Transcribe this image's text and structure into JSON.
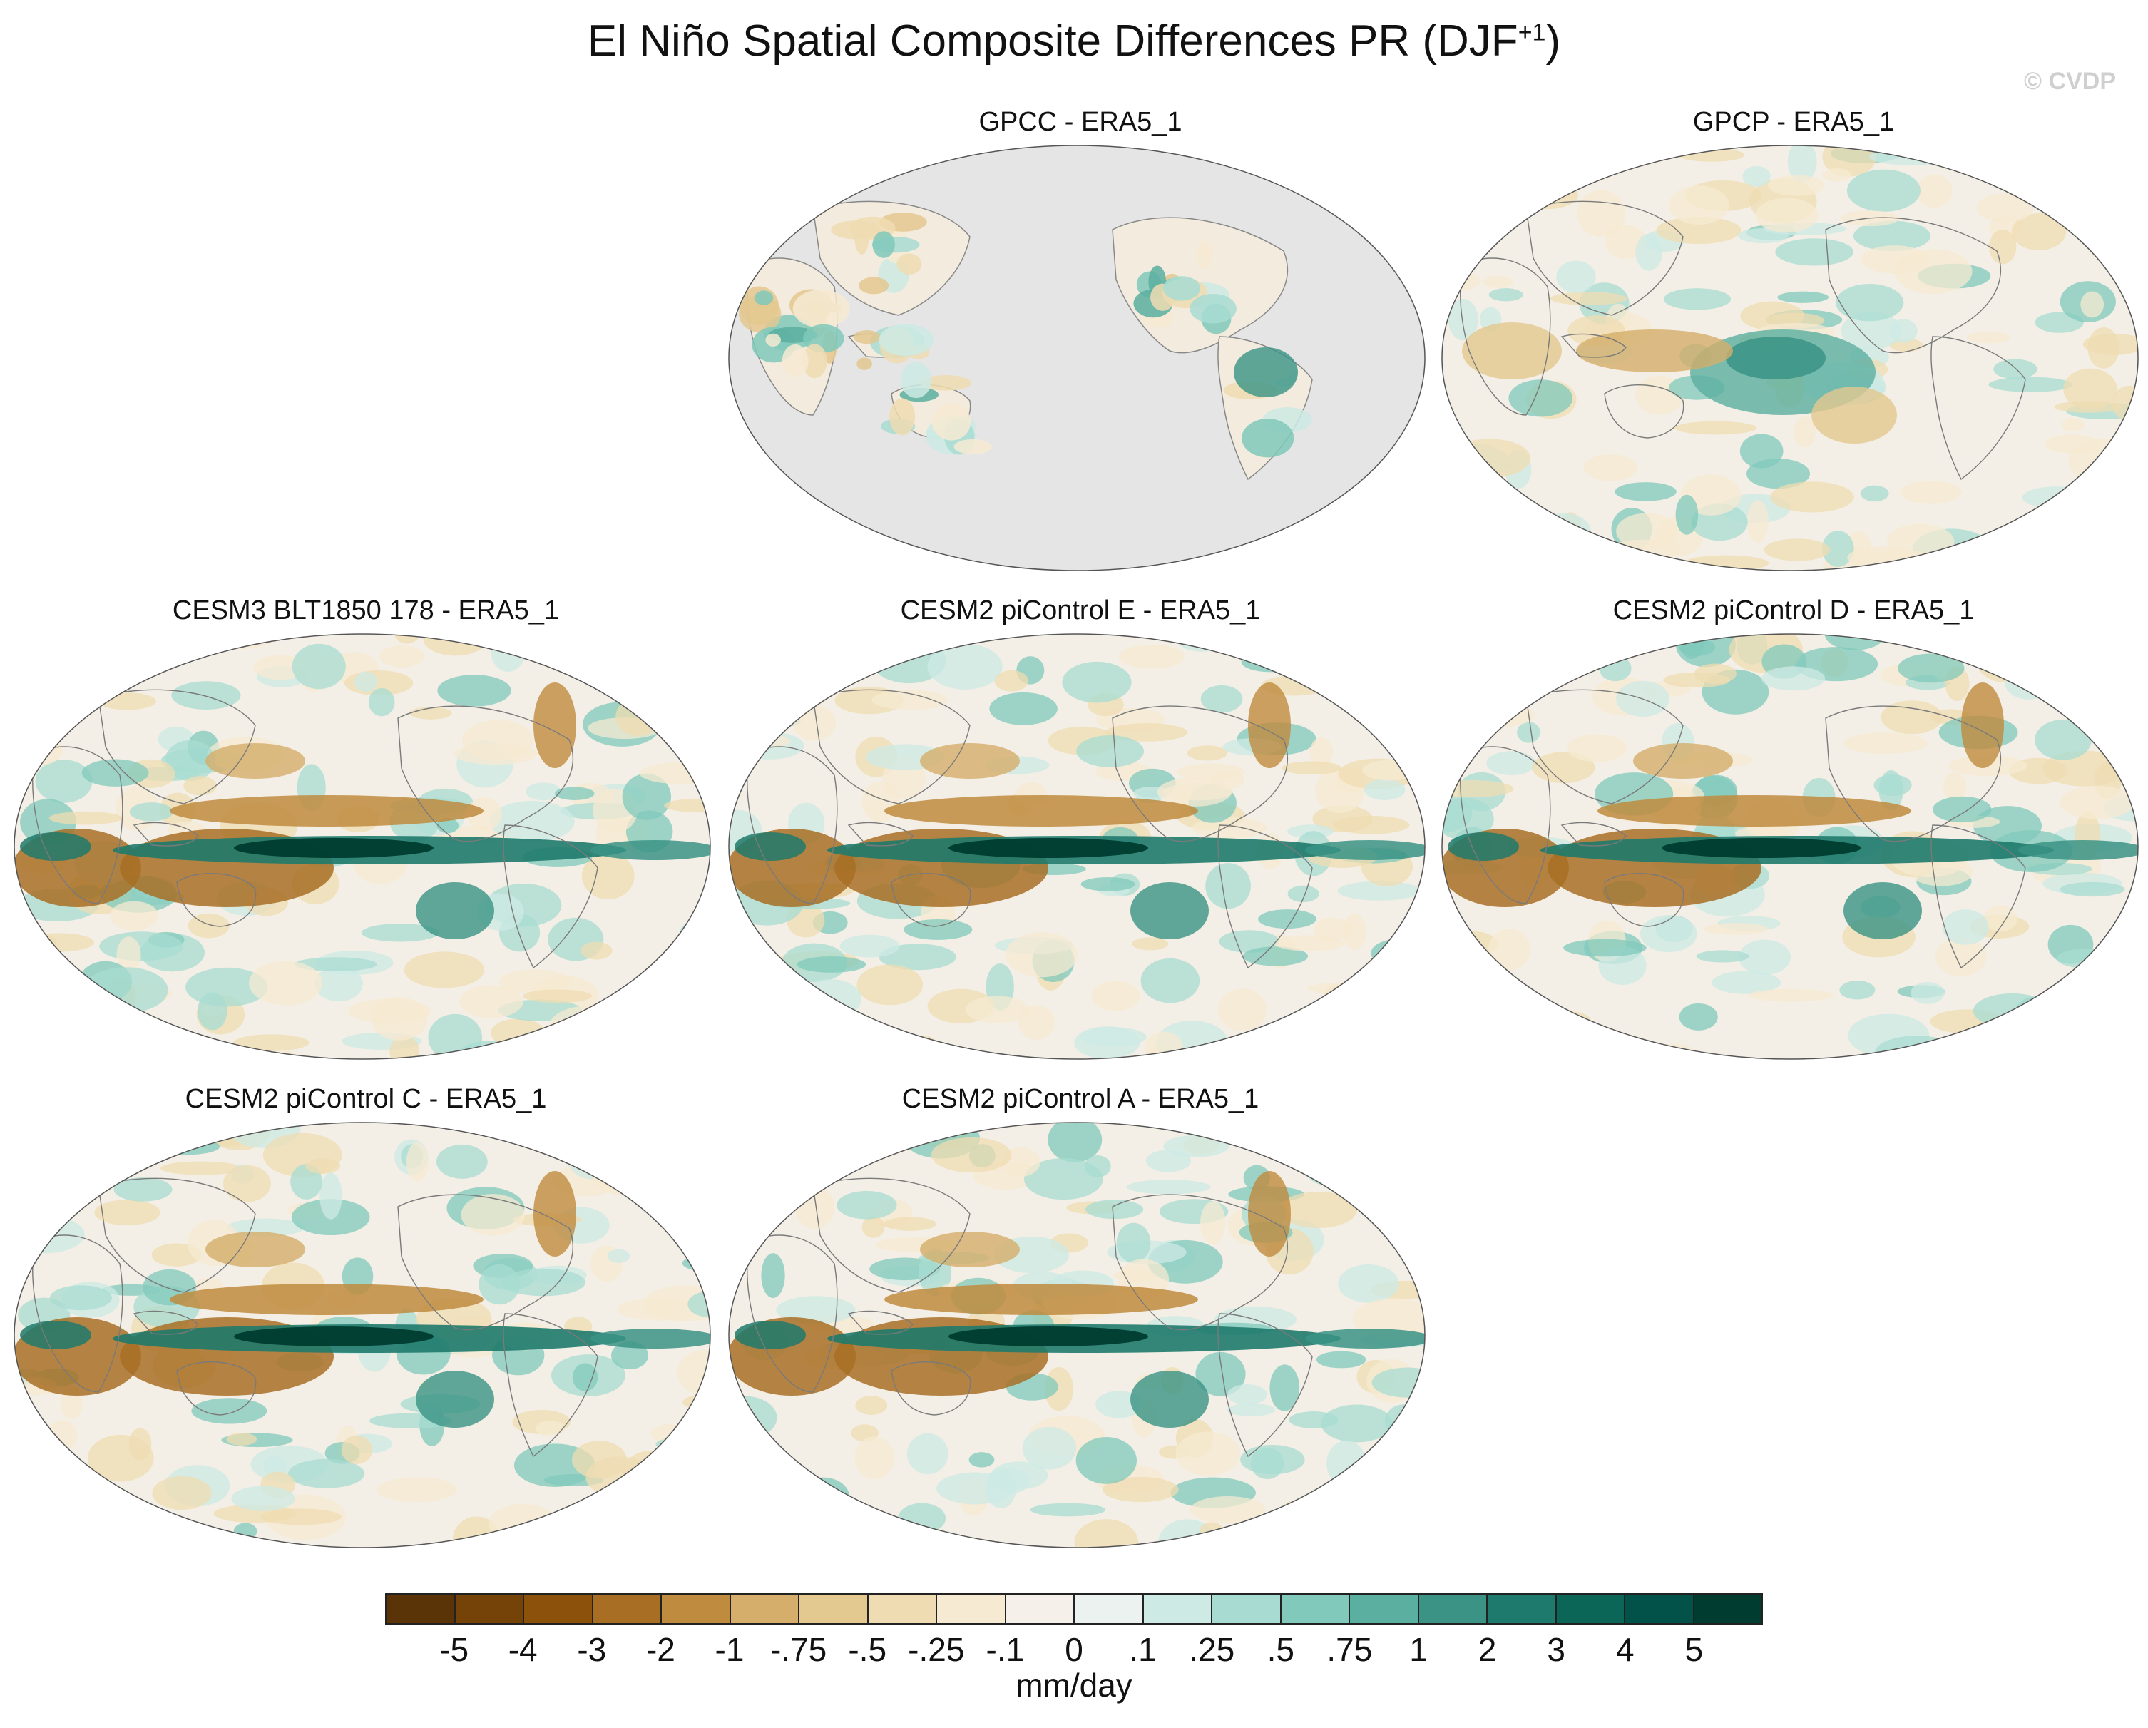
{
  "title": {
    "main": "El Niño Spatial Composite Differences PR (DJF",
    "sup": "+1",
    "close": ")"
  },
  "watermark": "© CVDP",
  "panels": [
    {
      "title": "GPCC - ERA5_1",
      "land_only": true
    },
    {
      "title": "GPCP - ERA5_1",
      "land_only": false
    },
    {
      "title": "CESM3 BLT1850 178 - ERA5_1",
      "land_only": false
    },
    {
      "title": "CESM2 piControl E - ERA5_1",
      "land_only": false
    },
    {
      "title": "CESM2 piControl D - ERA5_1",
      "land_only": false
    },
    {
      "title": "CESM2 piControl C - ERA5_1",
      "land_only": false
    },
    {
      "title": "CESM2 piControl A - ERA5_1",
      "land_only": false
    }
  ],
  "colorbar": {
    "colors": [
      "#5a3307",
      "#754208",
      "#8c510a",
      "#a86e24",
      "#bf8b3e",
      "#d4ae6a",
      "#e3c88f",
      "#efdcb2",
      "#f6ead2",
      "#f5f1ea",
      "#ebf2f0",
      "#cdeae4",
      "#a8dcd2",
      "#80c9bb",
      "#5aafa0",
      "#3a9385",
      "#1e7a6c",
      "#0c6658",
      "#02524a",
      "#003c30"
    ],
    "labels": [
      "-5",
      "-4",
      "-3",
      "-2",
      "-1",
      "-.75",
      "-.5",
      "-.25",
      "-.1",
      "0",
      ".1",
      ".25",
      ".5",
      ".75",
      "1",
      "2",
      "3",
      "4",
      "5"
    ],
    "units": "mm/day"
  },
  "missing_color": "#e5e5e5"
}
